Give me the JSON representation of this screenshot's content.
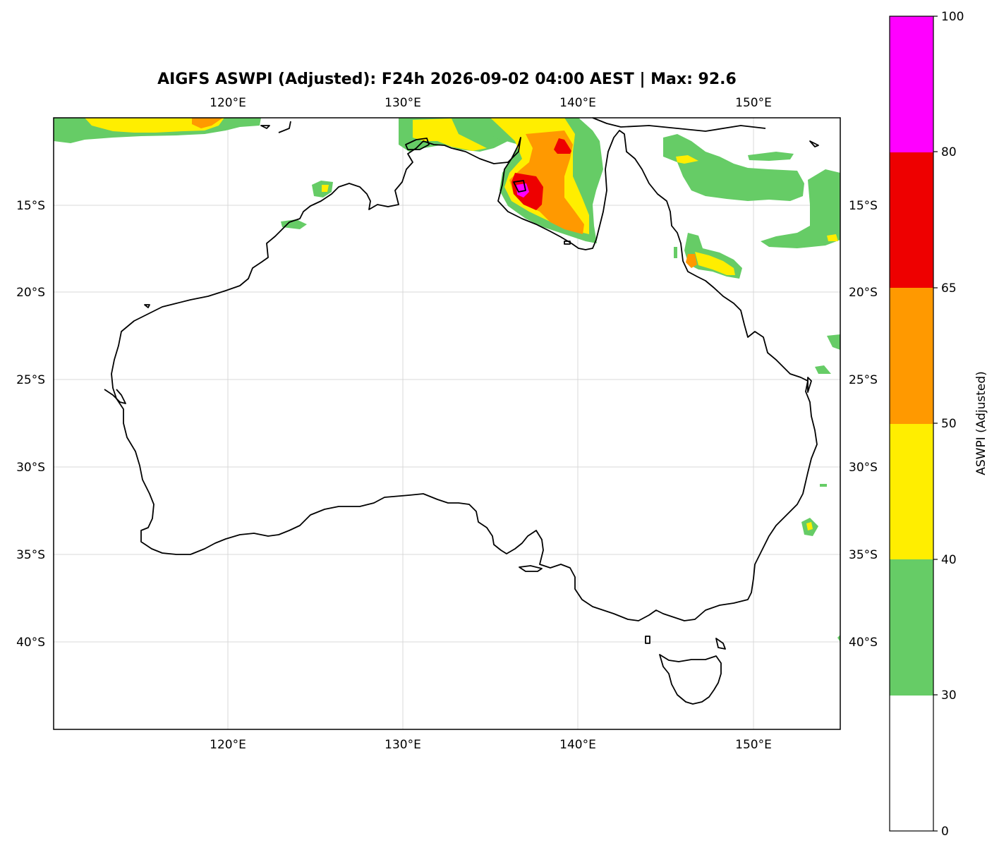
{
  "title": "AIGFS ASWPI (Adjusted): F24h 2026-09-02 04:00 AEST | Max: 92.6",
  "map": {
    "lon_range": [
      110,
      155
    ],
    "lat_range": [
      -45,
      -10
    ],
    "lon_ticks": [
      "120°E",
      "130°E",
      "140°E",
      "150°E"
    ],
    "lat_ticks": [
      "15°S",
      "20°S",
      "25°S",
      "30°S",
      "35°S",
      "40°S"
    ],
    "gridlines": true
  },
  "colorbar": {
    "label": "ASWPI (Adjusted)",
    "ticks": [
      "0",
      "30",
      "40",
      "50",
      "65",
      "80",
      "100"
    ],
    "bins": [
      {
        "range": [
          0,
          30
        ],
        "color": "#ffffff"
      },
      {
        "range": [
          30,
          40
        ],
        "color": "#66cc66"
      },
      {
        "range": [
          40,
          50
        ],
        "color": "#ffee00"
      },
      {
        "range": [
          50,
          65
        ],
        "color": "#ff9900"
      },
      {
        "range": [
          65,
          80
        ],
        "color": "#ee0000"
      },
      {
        "range": [
          80,
          100
        ],
        "color": "#ff00ff"
      }
    ]
  }
}
